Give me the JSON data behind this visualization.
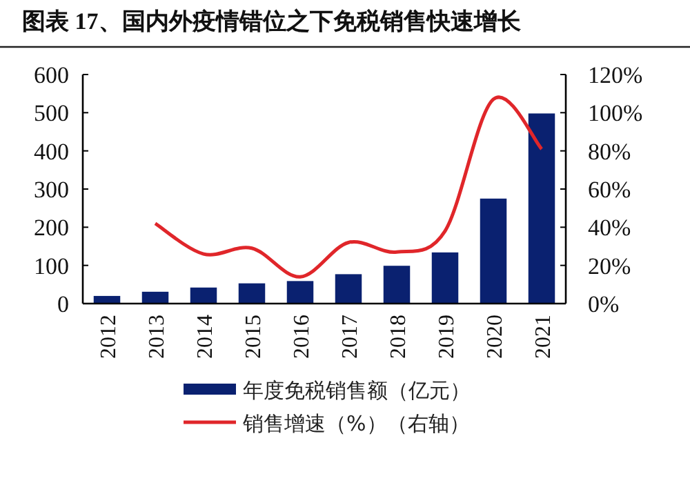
{
  "chart_data": {
    "type": "bar",
    "title": "图表 17、国内外疫情错位之下免税销售快速增长",
    "categories": [
      "2012",
      "2013",
      "2014",
      "2015",
      "2016",
      "2017",
      "2018",
      "2019",
      "2020",
      "2021"
    ],
    "series": [
      {
        "name": "年度免税销售额（亿元）",
        "color": "#0a2170",
        "values": [
          20,
          31,
          42,
          53,
          59,
          77,
          99,
          134,
          275,
          498
        ]
      },
      {
        "name": "销售增速（%）（右轴）",
        "type": "line",
        "axis": "y2",
        "color": "#e0262a",
        "values": [
          null,
          42,
          26,
          29,
          14,
          32,
          27,
          38,
          107,
          81
        ]
      }
    ],
    "ylim": [
      0,
      600
    ],
    "yticks": [
      0,
      100,
      200,
      300,
      400,
      500,
      600
    ],
    "y2lim": [
      0,
      120
    ],
    "y2ticks": [
      {
        "value": 0,
        "label": "0%"
      },
      {
        "value": 20,
        "label": "20%"
      },
      {
        "value": 40,
        "label": "40%"
      },
      {
        "value": 60,
        "label": "60%"
      },
      {
        "value": 80,
        "label": "80%"
      },
      {
        "value": 100,
        "label": "100%"
      },
      {
        "value": 120,
        "label": "120%"
      }
    ],
    "legend": "bottom",
    "grid": false
  }
}
